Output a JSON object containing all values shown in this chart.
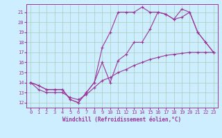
{
  "xlabel": "Windchill (Refroidissement éolien,°C)",
  "bg_color": "#cceeff",
  "line_color": "#993399",
  "grid_color": "#aaccbb",
  "xlim": [
    -0.5,
    23.5
  ],
  "ylim": [
    11.5,
    21.8
  ],
  "yticks": [
    12,
    13,
    14,
    15,
    16,
    17,
    18,
    19,
    20,
    21
  ],
  "xticks": [
    0,
    1,
    2,
    3,
    4,
    5,
    6,
    7,
    8,
    9,
    10,
    11,
    12,
    13,
    14,
    15,
    16,
    17,
    18,
    19,
    20,
    21,
    22,
    23
  ],
  "line1_x": [
    0,
    1,
    2,
    3,
    4,
    5,
    6,
    7,
    8,
    9,
    10,
    11,
    12,
    13,
    14,
    15,
    16,
    17,
    18,
    19,
    20,
    21,
    22,
    23
  ],
  "line1_y": [
    14.0,
    13.7,
    13.3,
    13.3,
    13.3,
    12.3,
    12.0,
    13.0,
    14.0,
    17.5,
    19.0,
    21.0,
    21.0,
    21.0,
    21.5,
    21.0,
    21.0,
    20.8,
    20.3,
    21.3,
    21.0,
    19.0,
    18.0,
    17.0
  ],
  "line2_x": [
    0,
    1,
    2,
    3,
    4,
    5,
    6,
    7,
    8,
    9,
    10,
    11,
    12,
    13,
    14,
    15,
    16,
    17,
    18,
    19,
    20,
    21,
    22,
    23
  ],
  "line2_y": [
    14.0,
    13.7,
    13.3,
    13.3,
    13.3,
    12.3,
    12.0,
    13.0,
    14.0,
    16.0,
    14.0,
    16.2,
    16.8,
    18.0,
    18.0,
    19.3,
    21.0,
    20.8,
    20.3,
    20.5,
    21.0,
    19.0,
    18.0,
    17.0
  ],
  "line3_x": [
    0,
    1,
    2,
    3,
    4,
    5,
    6,
    7,
    8,
    9,
    10,
    11,
    12,
    13,
    14,
    15,
    16,
    17,
    18,
    19,
    20,
    21,
    22,
    23
  ],
  "line3_y": [
    14.0,
    13.3,
    13.0,
    13.0,
    13.0,
    12.5,
    12.3,
    12.8,
    13.5,
    14.2,
    14.5,
    15.0,
    15.3,
    15.7,
    16.0,
    16.3,
    16.5,
    16.7,
    16.8,
    16.9,
    17.0,
    17.0,
    17.0,
    17.0
  ]
}
